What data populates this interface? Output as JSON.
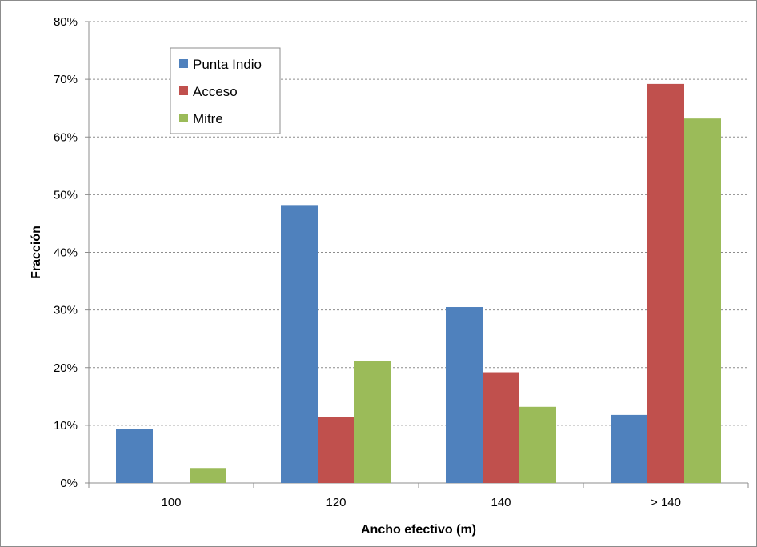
{
  "chart_data": {
    "type": "bar",
    "categories": [
      "100",
      "120",
      "140",
      "> 140"
    ],
    "series": [
      {
        "name": "Punta Indio",
        "color": "#4f81bd",
        "values": [
          0.094,
          0.482,
          0.305,
          0.118
        ]
      },
      {
        "name": "Acceso",
        "color": "#c0504d",
        "values": [
          0.0,
          0.115,
          0.192,
          0.692
        ]
      },
      {
        "name": "Mitre",
        "color": "#9bbb59",
        "values": [
          0.026,
          0.211,
          0.132,
          0.632
        ]
      }
    ],
    "xlabel": "Ancho efectivo (m)",
    "ylabel": "Fracción",
    "ylim": [
      0,
      0.8
    ],
    "yticks": [
      "0%",
      "10%",
      "20%",
      "30%",
      "40%",
      "50%",
      "60%",
      "70%",
      "80%"
    ],
    "grid": true,
    "legend_position": "top-left"
  }
}
